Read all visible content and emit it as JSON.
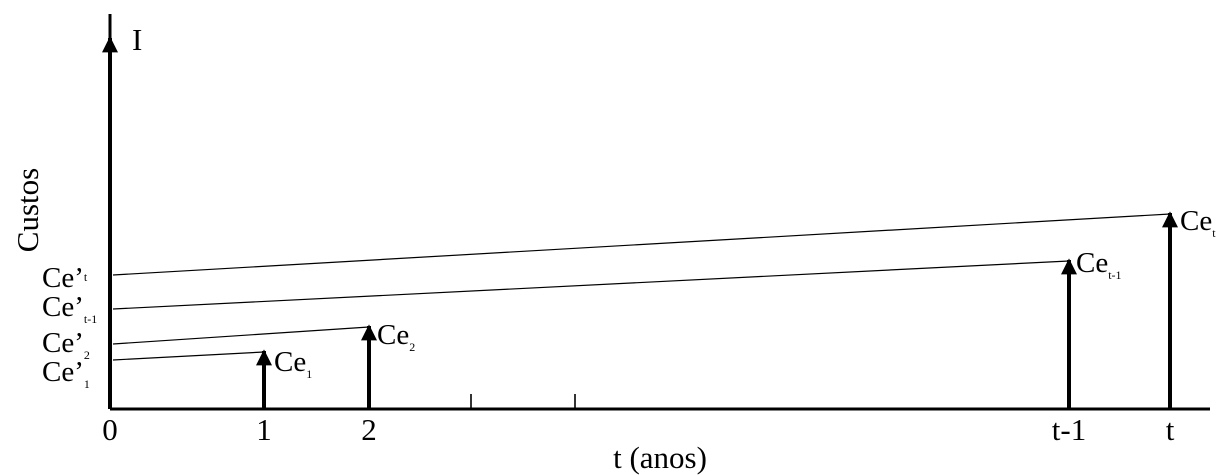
{
  "diagram": {
    "y_axis_title": "Custos",
    "x_axis_title": "t (anos)",
    "investment_label": "I",
    "x_ticks": [
      {
        "name": "x-tick-0",
        "label": "0"
      },
      {
        "name": "x-tick-1",
        "label": "1"
      },
      {
        "name": "x-tick-2",
        "label": "2"
      },
      {
        "name": "x-tick-t-minus-1",
        "label": "t-1"
      },
      {
        "name": "x-tick-t",
        "label": "t"
      }
    ],
    "cost_arrows": [
      {
        "base": "Ce",
        "sub": "1"
      },
      {
        "base": "Ce",
        "sub": "2"
      },
      {
        "base": "Ce",
        "sub": "t-1"
      },
      {
        "base": "Ce",
        "sub": "t"
      }
    ],
    "present_values": [
      {
        "base": "Ce’",
        "sub": "t"
      },
      {
        "base": "Ce’",
        "sub": "t-1"
      },
      {
        "base": "Ce’",
        "sub": "2"
      },
      {
        "base": "Ce’",
        "sub": "1"
      }
    ]
  }
}
